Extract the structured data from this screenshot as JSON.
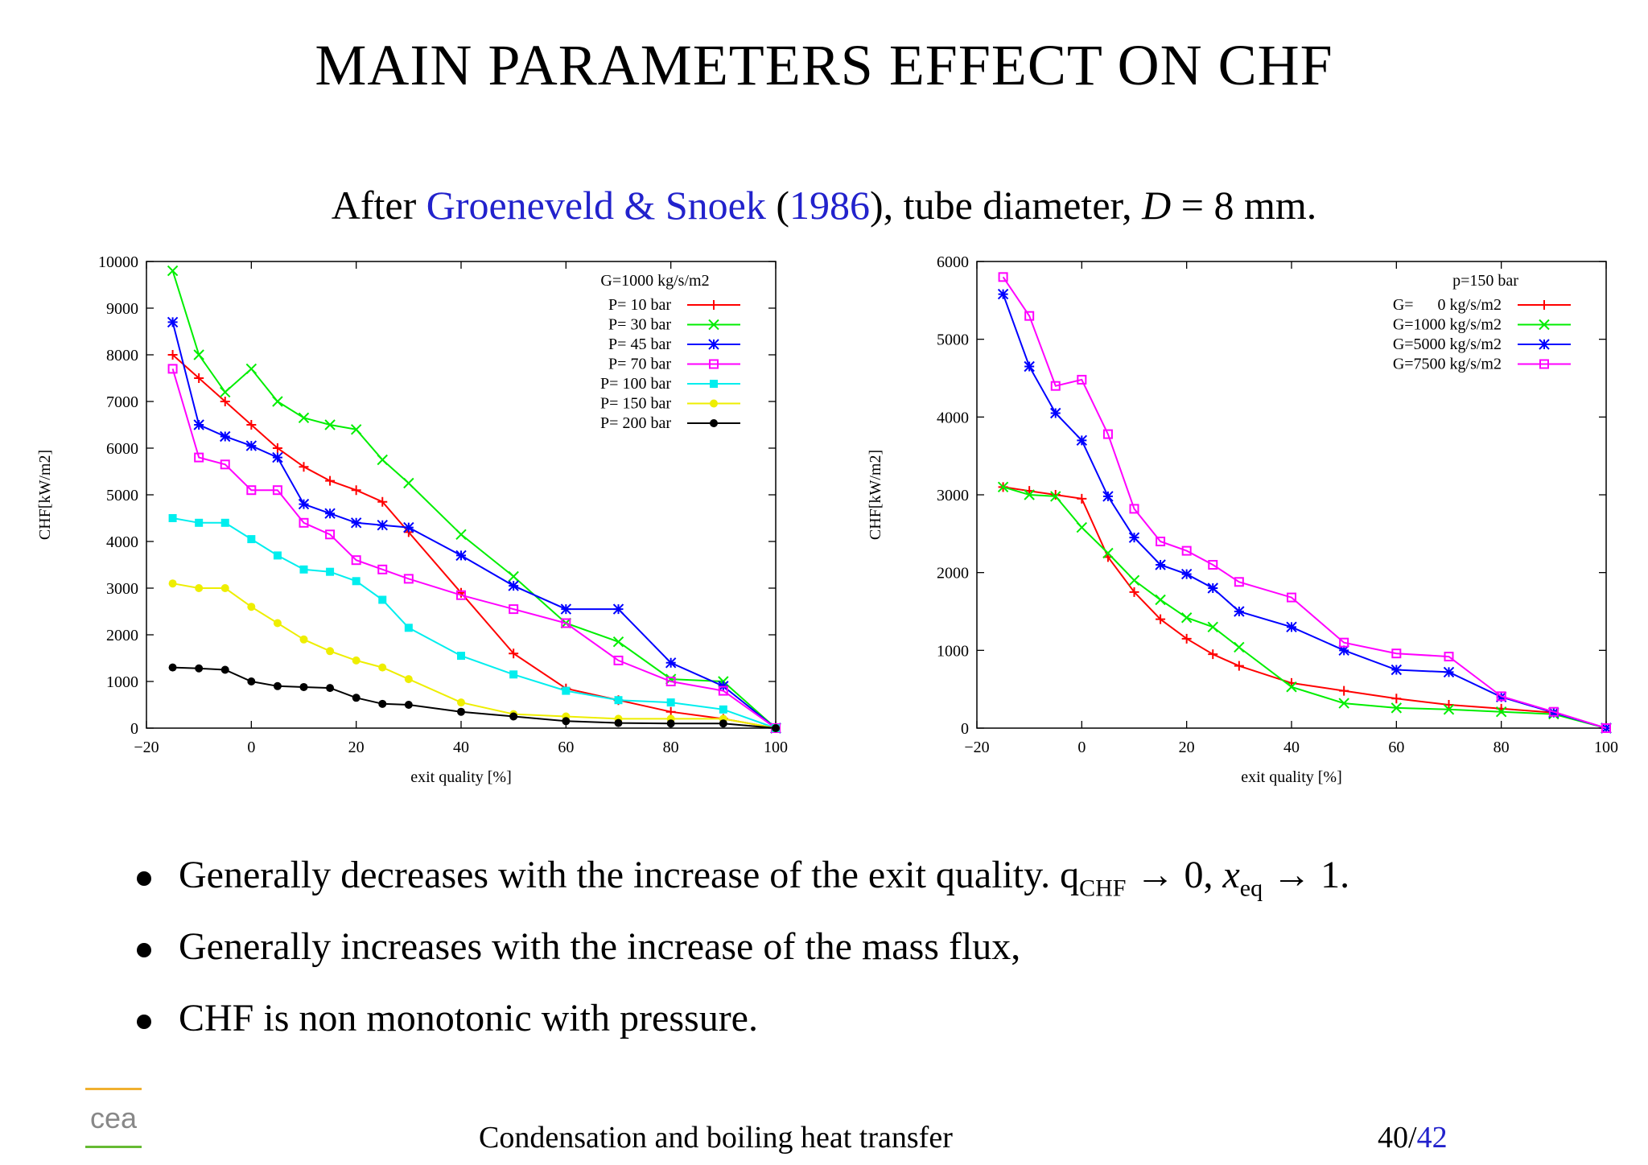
{
  "slide": {
    "title": "MAIN PARAMETERS EFFECT ON CHF",
    "subtitle": {
      "prefix": "After ",
      "authors": "Groeneveld & Snoek",
      "open": " (",
      "year": "1986",
      "close": ")",
      "rest_before": ", tube diameter, ",
      "var": "D",
      "rest_after": " = 8 mm."
    },
    "bullets": [
      "Generally decreases with the increase of the exit quality. q",
      "Generally increases with the increase of the mass flux,",
      "CHF is non monotonic with pressure."
    ],
    "bullet1_math": {
      "sub1": "CHF",
      "arrow1": " → 0, ",
      "var2": "x",
      "sub2": "eq",
      "arrow2": " → 1."
    },
    "footer": {
      "text": "Condensation and boiling heat transfer",
      "page_current": "40",
      "page_sep": "/",
      "page_total": "42"
    },
    "logo_text": "cea",
    "colors": {
      "link": "#2222cc",
      "logo_orange": "#f0b030",
      "logo_green": "#66bb33",
      "logo_gray": "#888888"
    }
  },
  "chart_data": [
    {
      "type": "line",
      "title": "",
      "xlabel": "exit quality [%]",
      "ylabel": "CHF[kW/m2]",
      "xlim": [
        -20,
        100
      ],
      "ylim": [
        0,
        10000
      ],
      "xticks": [
        -20,
        0,
        20,
        40,
        60,
        80,
        100
      ],
      "yticks": [
        0,
        1000,
        2000,
        3000,
        4000,
        5000,
        6000,
        7000,
        8000,
        9000,
        10000
      ],
      "legend_title": "G=1000 kg/s/m2",
      "legend_position": "top-right",
      "series": [
        {
          "name": "P= 10 bar",
          "color": "#ff0000",
          "marker": "plus",
          "x": [
            -15,
            -10,
            -5,
            0,
            5,
            10,
            15,
            20,
            25,
            30,
            40,
            50,
            60,
            70,
            80,
            90,
            100
          ],
          "y": [
            8000,
            7500,
            7000,
            6500,
            6000,
            5600,
            5300,
            5100,
            4850,
            4200,
            2900,
            1600,
            850,
            600,
            350,
            200,
            0
          ]
        },
        {
          "name": "P= 30 bar",
          "color": "#00ee00",
          "marker": "cross",
          "x": [
            -15,
            -10,
            -5,
            0,
            5,
            10,
            15,
            20,
            25,
            30,
            40,
            50,
            60,
            70,
            80,
            90,
            100
          ],
          "y": [
            9800,
            8000,
            7200,
            7700,
            7000,
            6650,
            6500,
            6400,
            5750,
            5250,
            4150,
            3250,
            2250,
            1850,
            1050,
            1000,
            0
          ]
        },
        {
          "name": "P= 45 bar",
          "color": "#0000ff",
          "marker": "star",
          "x": [
            -15,
            -10,
            -5,
            0,
            5,
            10,
            15,
            20,
            25,
            30,
            40,
            50,
            60,
            70,
            80,
            90,
            100
          ],
          "y": [
            8700,
            6500,
            6250,
            6050,
            5800,
            4800,
            4600,
            4400,
            4350,
            4300,
            3700,
            3050,
            2550,
            2550,
            1400,
            900,
            0
          ]
        },
        {
          "name": "P= 70 bar",
          "color": "#ff00ff",
          "marker": "square",
          "x": [
            -15,
            -10,
            -5,
            0,
            5,
            10,
            15,
            20,
            25,
            30,
            40,
            50,
            60,
            70,
            80,
            90,
            100
          ],
          "y": [
            7700,
            5800,
            5650,
            5100,
            5100,
            4400,
            4150,
            3600,
            3400,
            3200,
            2850,
            2550,
            2250,
            1450,
            1000,
            800,
            0
          ]
        },
        {
          "name": "P= 100 bar",
          "color": "#00eeee",
          "marker": "filled-square",
          "x": [
            -15,
            -10,
            -5,
            0,
            5,
            10,
            15,
            20,
            25,
            30,
            40,
            50,
            60,
            70,
            80,
            90,
            100
          ],
          "y": [
            4500,
            4400,
            4400,
            4050,
            3700,
            3400,
            3350,
            3150,
            2750,
            2150,
            1550,
            1150,
            800,
            600,
            550,
            400,
            0
          ]
        },
        {
          "name": "P= 150 bar",
          "color": "#eeee00",
          "marker": "filled-circle",
          "x": [
            -15,
            -10,
            -5,
            0,
            5,
            10,
            15,
            20,
            25,
            30,
            40,
            50,
            60,
            70,
            80,
            90,
            100
          ],
          "y": [
            3100,
            3000,
            3000,
            2600,
            2250,
            1900,
            1650,
            1450,
            1300,
            1050,
            550,
            300,
            250,
            200,
            200,
            200,
            0
          ]
        },
        {
          "name": "P= 200 bar",
          "color": "#000000",
          "marker": "filled-circle",
          "x": [
            -15,
            -10,
            -5,
            0,
            5,
            10,
            15,
            20,
            25,
            30,
            40,
            50,
            60,
            70,
            80,
            90,
            100
          ],
          "y": [
            1300,
            1280,
            1250,
            1000,
            900,
            880,
            860,
            650,
            520,
            500,
            350,
            250,
            150,
            110,
            100,
            100,
            0
          ]
        }
      ]
    },
    {
      "type": "line",
      "title": "",
      "xlabel": "exit quality [%]",
      "ylabel": "CHF[kW/m2]",
      "xlim": [
        -20,
        100
      ],
      "ylim": [
        0,
        6000
      ],
      "xticks": [
        -20,
        0,
        20,
        40,
        60,
        80,
        100
      ],
      "yticks": [
        0,
        1000,
        2000,
        3000,
        4000,
        5000,
        6000
      ],
      "legend_title": "p=150 bar",
      "legend_position": "top-right",
      "series": [
        {
          "name": "G=      0 kg/s/m2",
          "color": "#ff0000",
          "marker": "plus",
          "x": [
            -15,
            -10,
            -5,
            0,
            5,
            10,
            15,
            20,
            25,
            30,
            40,
            50,
            60,
            70,
            80,
            90,
            100
          ],
          "y": [
            3100,
            3050,
            3000,
            2950,
            2200,
            1750,
            1400,
            1150,
            950,
            800,
            580,
            480,
            380,
            300,
            250,
            200,
            0
          ]
        },
        {
          "name": "G=1000 kg/s/m2",
          "color": "#00ee00",
          "marker": "cross",
          "x": [
            -15,
            -10,
            -5,
            0,
            5,
            10,
            15,
            20,
            25,
            30,
            40,
            50,
            60,
            70,
            80,
            90,
            100
          ],
          "y": [
            3100,
            3000,
            2980,
            2580,
            2250,
            1900,
            1650,
            1420,
            1300,
            1040,
            530,
            320,
            260,
            240,
            210,
            180,
            0
          ]
        },
        {
          "name": "G=5000 kg/s/m2",
          "color": "#0000ff",
          "marker": "star",
          "x": [
            -15,
            -10,
            -5,
            0,
            5,
            10,
            15,
            20,
            25,
            30,
            40,
            50,
            60,
            70,
            80,
            90,
            100
          ],
          "y": [
            5580,
            4650,
            4050,
            3700,
            2980,
            2450,
            2100,
            1980,
            1800,
            1500,
            1300,
            1000,
            750,
            720,
            400,
            200,
            0
          ]
        },
        {
          "name": "G=7500 kg/s/m2",
          "color": "#ff00ff",
          "marker": "square",
          "x": [
            -15,
            -10,
            -5,
            0,
            5,
            10,
            15,
            20,
            25,
            30,
            40,
            50,
            60,
            70,
            80,
            90,
            100
          ],
          "y": [
            5800,
            5300,
            4400,
            4480,
            3780,
            2820,
            2400,
            2280,
            2100,
            1880,
            1680,
            1100,
            960,
            920,
            410,
            210,
            0
          ]
        }
      ]
    }
  ]
}
